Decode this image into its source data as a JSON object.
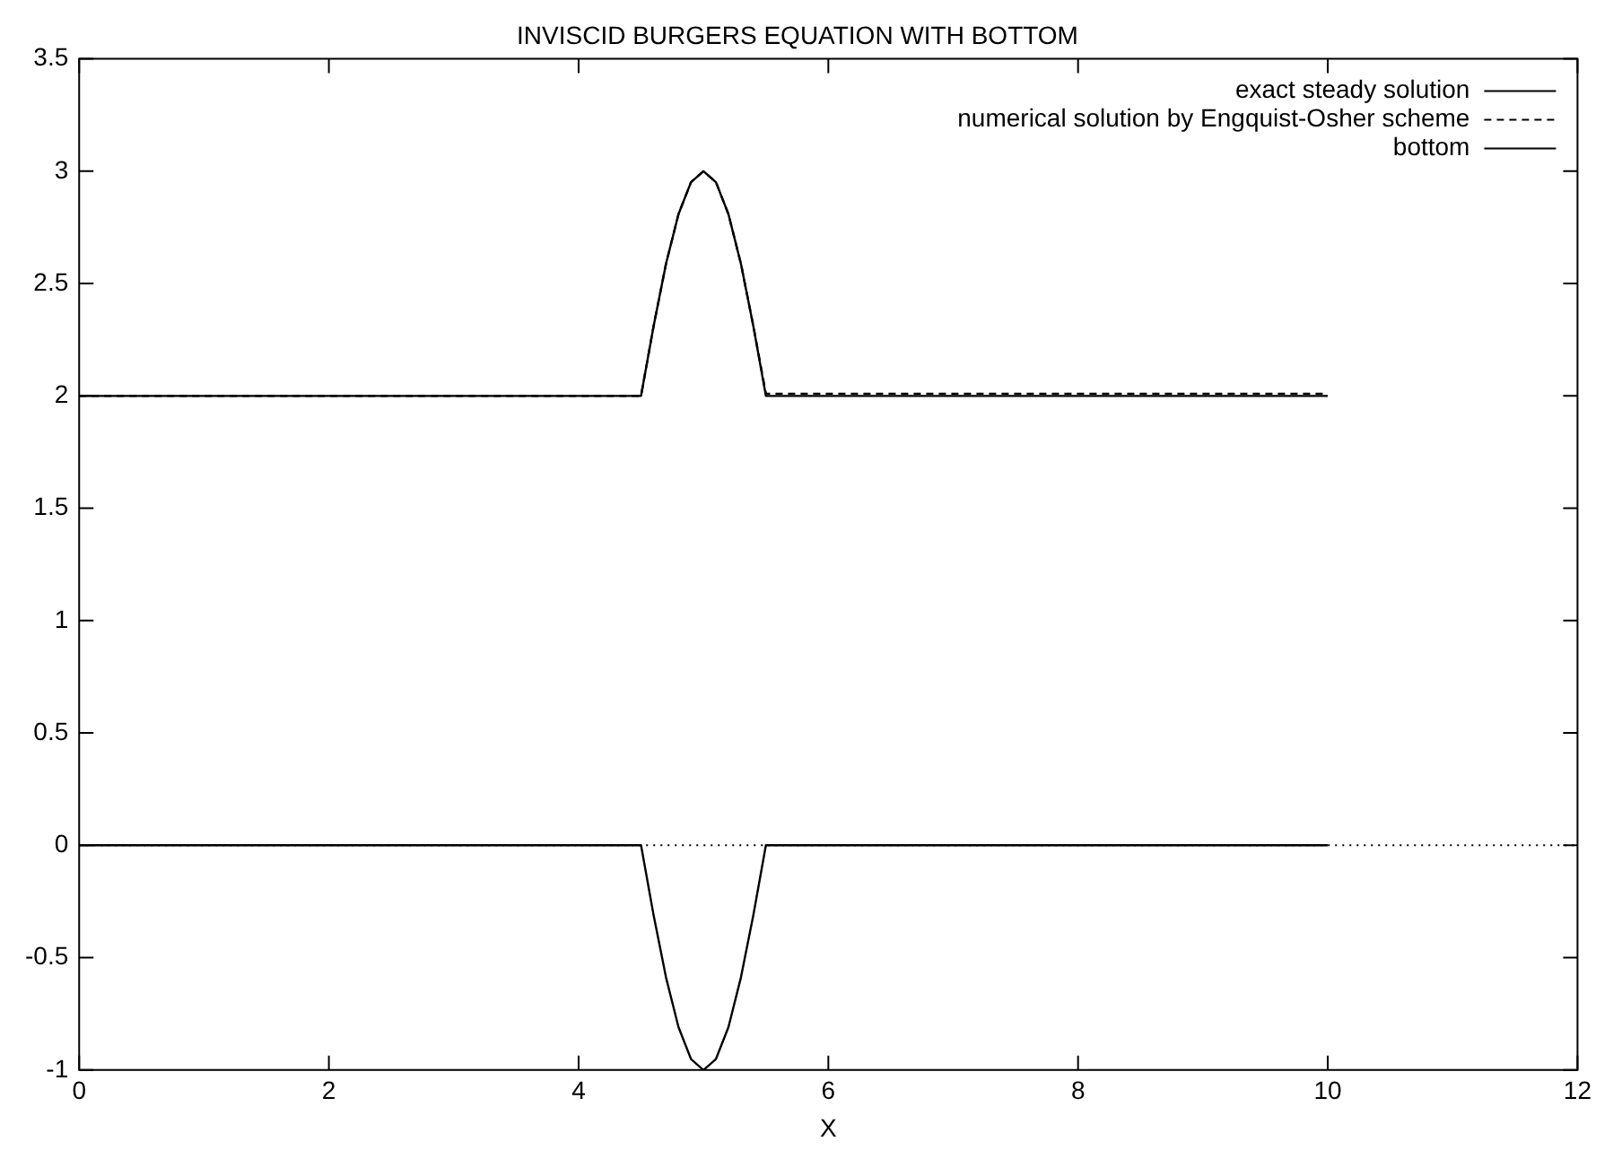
{
  "chart_data": {
    "type": "line",
    "title": "INVISCID BURGERS EQUATION WITH BOTTOM",
    "xlabel": "X",
    "xlim": [
      0,
      12
    ],
    "xticks": [
      0,
      2,
      4,
      6,
      8,
      10,
      12
    ],
    "ylim": [
      -1,
      3.5
    ],
    "yticks": [
      -1,
      -0.5,
      0,
      0.5,
      1,
      1.5,
      2,
      2.5,
      3,
      3.5
    ],
    "grid": false,
    "legend": "top right",
    "marker": "none",
    "series": [
      {
        "name": "exact steady solution",
        "color": "#000000",
        "line_style": "solid",
        "x": [
          0,
          4.5,
          4.6,
          4.7,
          4.8,
          4.9,
          5,
          5.1,
          5.2,
          5.3,
          5.4,
          5.5,
          10
        ],
        "values": [
          2,
          2,
          2.309,
          2.588,
          2.809,
          2.951,
          3,
          2.951,
          2.809,
          2.588,
          2.309,
          2,
          2
        ]
      },
      {
        "name": "numerical solution by Engquist-Osher scheme",
        "color": "#000000",
        "line_style": "dashed",
        "x": [
          0,
          4.5,
          4.6,
          4.7,
          4.8,
          4.9,
          5,
          5.1,
          5.2,
          5.3,
          5.4,
          5.5,
          10
        ],
        "values": [
          2,
          2,
          2.309,
          2.588,
          2.809,
          2.951,
          3,
          2.951,
          2.809,
          2.588,
          2.309,
          2.01,
          2.01
        ]
      },
      {
        "name": "bottom",
        "color": "#000000",
        "line_style": "solid",
        "x": [
          0,
          4.5,
          4.6,
          4.7,
          4.8,
          4.9,
          5,
          5.1,
          5.2,
          5.3,
          5.4,
          5.5,
          10
        ],
        "values": [
          0,
          0,
          -0.309,
          -0.588,
          -0.809,
          -0.951,
          -1,
          -0.951,
          -0.809,
          -0.588,
          -0.309,
          0,
          0
        ]
      }
    ],
    "ref_lines": [
      {
        "axis": "y",
        "value": 0,
        "line_style": "dotted",
        "color": "#000000"
      }
    ]
  }
}
